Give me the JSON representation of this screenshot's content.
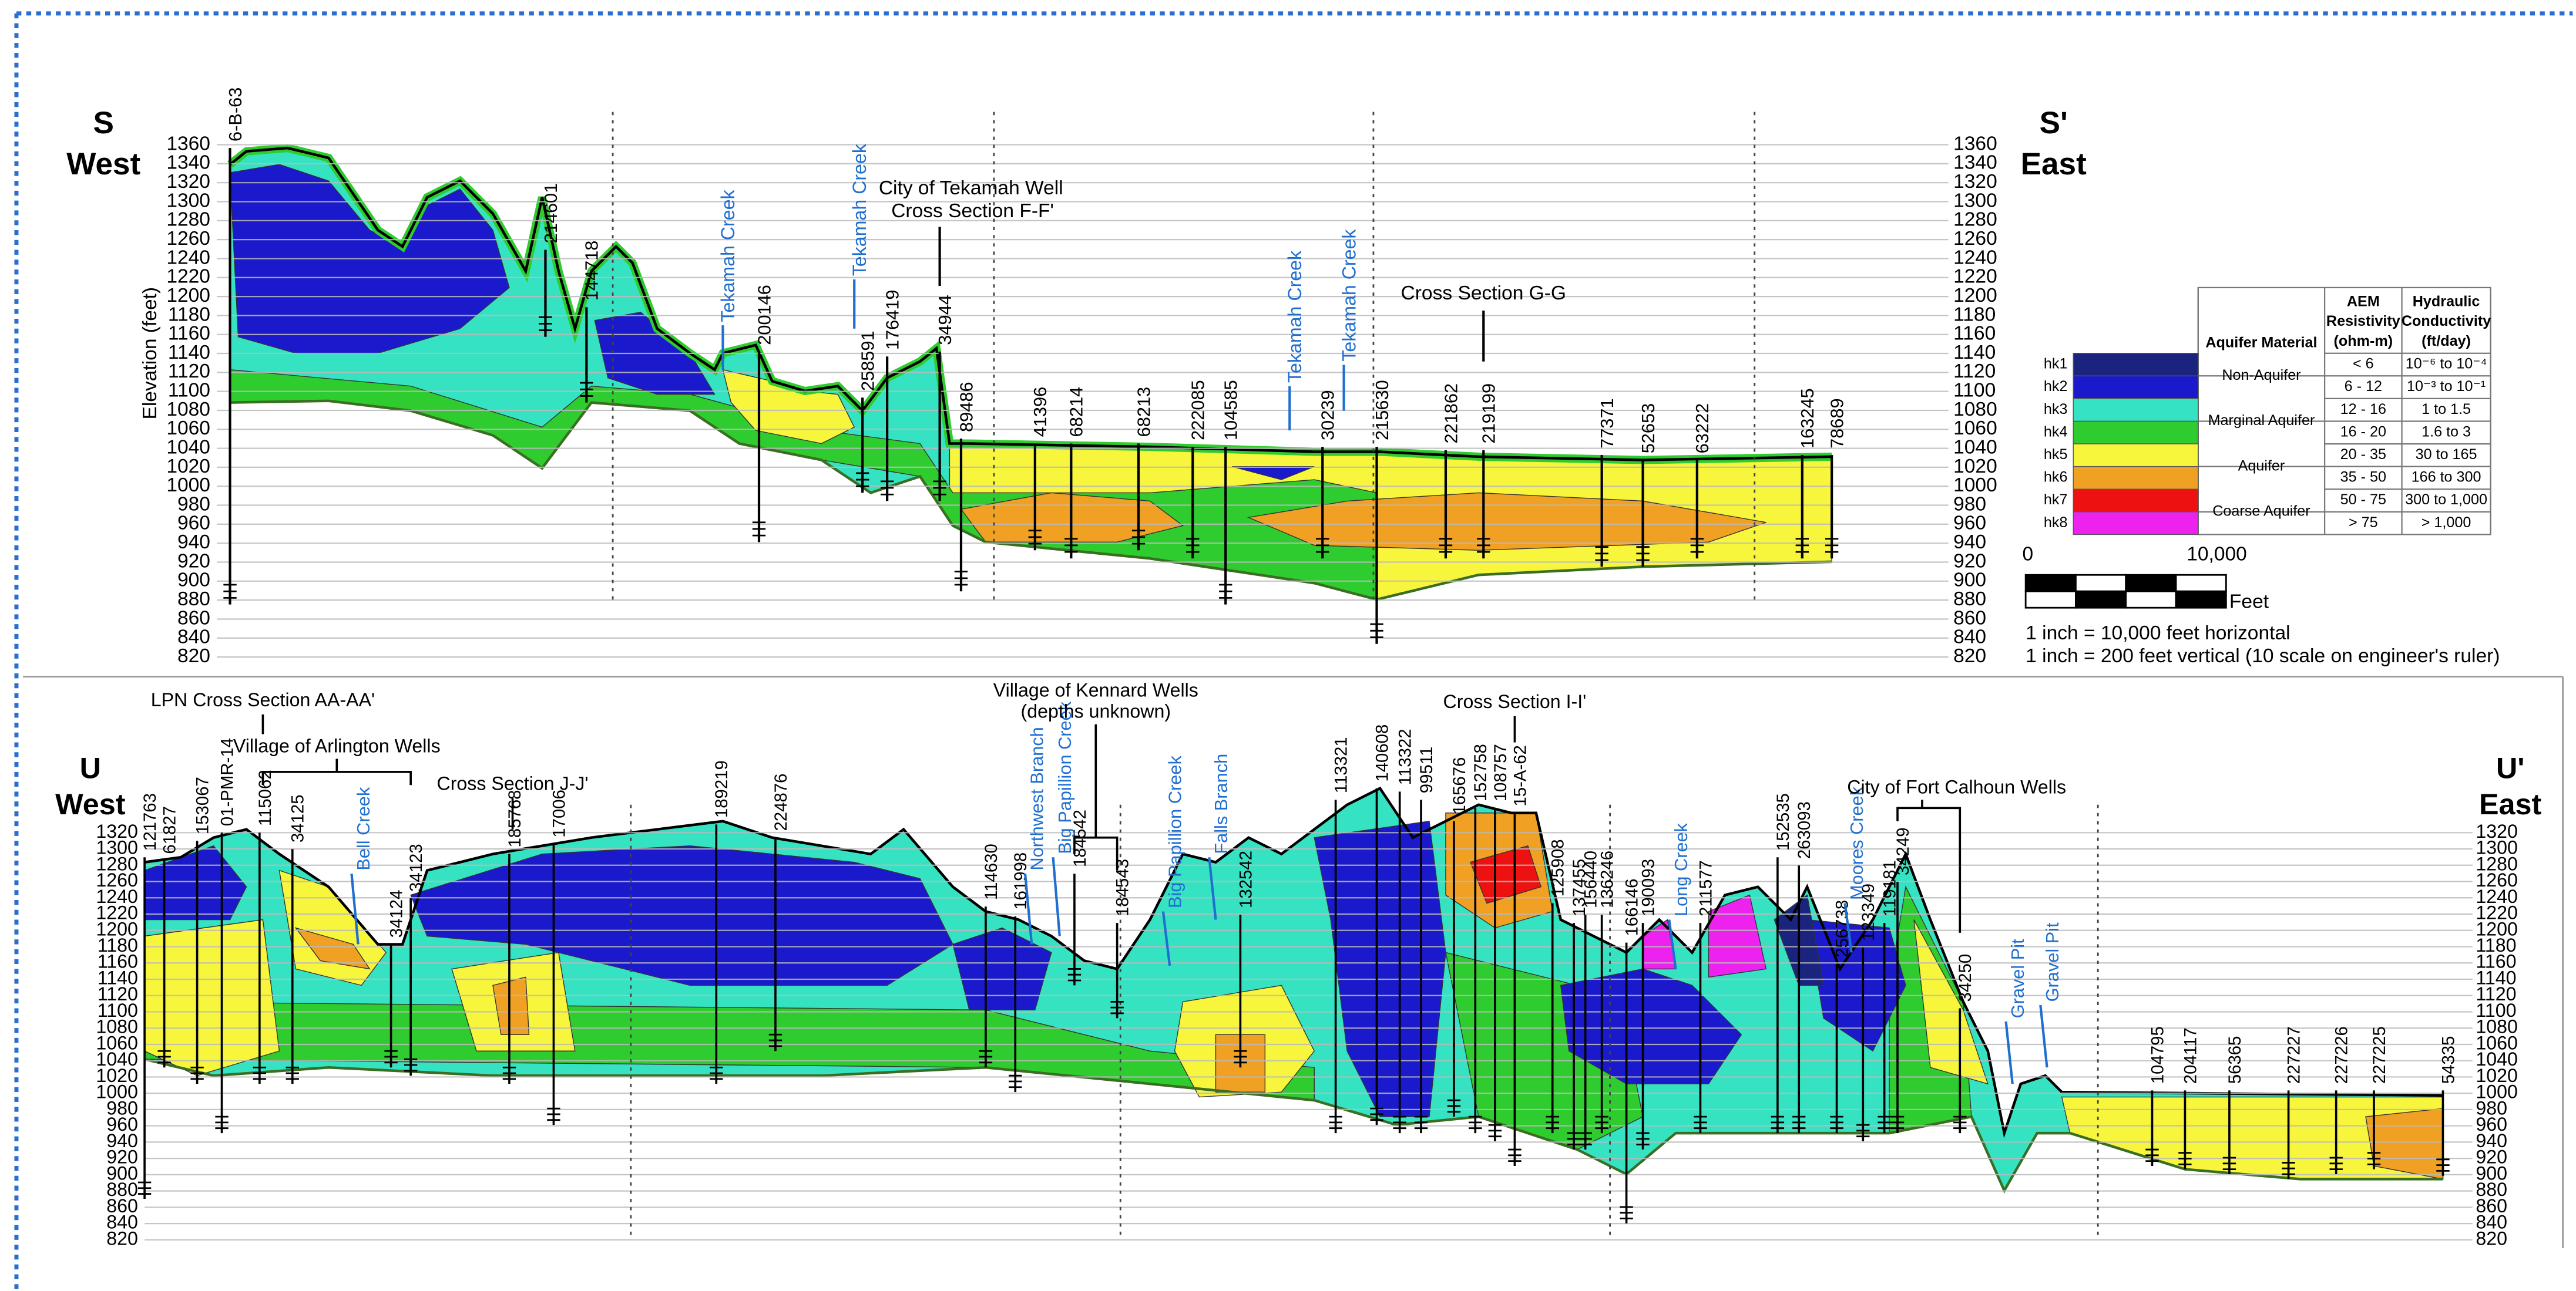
{
  "top_panel": {
    "left_label": "S",
    "left_direction": "West",
    "right_label": "S'",
    "right_direction": "East",
    "y_axis_label": "Elevation (feet)",
    "yticks": [
      1360,
      1340,
      1320,
      1300,
      1280,
      1260,
      1240,
      1220,
      1200,
      1180,
      1160,
      1140,
      1120,
      1100,
      1080,
      1060,
      1040,
      1020,
      1000,
      980,
      960,
      940,
      920,
      900,
      880,
      860,
      840,
      820
    ],
    "wells": [
      "6-B-63",
      "214601",
      "144718",
      "200146",
      "258591",
      "176419",
      "34944",
      "89486",
      "41396",
      "68214",
      "68213",
      "222085",
      "104585",
      "30239",
      "215630",
      "221862",
      "219199",
      "77371",
      "52653",
      "63222",
      "163245",
      "78689"
    ],
    "creeks": [
      "Tekamah Creek",
      "Tekamah Creek",
      "Tekamah Creek",
      "Tekamah Creek"
    ],
    "annotations": [
      "City of Tekamah Well",
      "Cross Section F-F'",
      "Cross Section G-G"
    ]
  },
  "bottom_panel": {
    "left_label": "U",
    "left_direction": "West",
    "right_label": "U'",
    "right_direction": "East",
    "yticks": [
      1320,
      1300,
      1280,
      1260,
      1240,
      1220,
      1200,
      1180,
      1160,
      1140,
      1120,
      1100,
      1080,
      1060,
      1040,
      1020,
      1000,
      980,
      960,
      940,
      920,
      900,
      880,
      860,
      840,
      820
    ],
    "wells": [
      "121763",
      "61827",
      "153067",
      "01-PMR-14",
      "115062",
      "34125",
      "34124",
      "34123",
      "185768",
      "17006",
      "189219",
      "224876",
      "114630",
      "161998",
      "184542",
      "184543",
      "132542",
      "113321",
      "140608",
      "113322",
      "99511",
      "165676",
      "152758",
      "108757",
      "15-A-62",
      "125908",
      "137455",
      "156440",
      "136246",
      "166146",
      "190093",
      "211577",
      "152535",
      "263093",
      "256738",
      "123349",
      "119181",
      "34249",
      "34250",
      "104795",
      "204117",
      "56365",
      "227227",
      "227226",
      "227225",
      "54335"
    ],
    "creeks": [
      "Bell Creek",
      "Northwest Branch",
      "Big Papillion Creek",
      "Big Papillion Creek",
      "Falls Branch",
      "Long Creek",
      "Moores Creek",
      "Gravel Pit",
      "Gravel Pit"
    ],
    "annotations": [
      "LPN Cross Section AA-AA'",
      "Village of Arlington Wells",
      "Cross Section J-J'",
      "Village of Kennard Wells",
      "(depths unknown)",
      "Cross Section I-I'",
      "City of Fort Calhoun Wells"
    ]
  },
  "legend": {
    "headers": [
      [
        "Aquifer Material"
      ],
      [
        "AEM",
        "Resistivity",
        "(ohm-m)"
      ],
      [
        "Hydraulic",
        "Conductivity",
        "(ft/day)"
      ]
    ],
    "groups": [
      "Non-Aquifer",
      "Marginal Aquifer",
      "Aquifer",
      "Coarse Aquifer"
    ],
    "rows": [
      {
        "code": "hk1",
        "color": "#1a237e",
        "resistivity": "< 6",
        "conductivity": "10⁻⁶ to 10⁻⁴"
      },
      {
        "code": "hk2",
        "color": "#1a1acc",
        "resistivity": "6 - 12",
        "conductivity": "10⁻³ to 10⁻¹"
      },
      {
        "code": "hk3",
        "color": "#35e3c3",
        "resistivity": "12 - 16",
        "conductivity": "1 to 1.5"
      },
      {
        "code": "hk4",
        "color": "#2ecc2e",
        "resistivity": "16 - 20",
        "conductivity": "1.6 to 3"
      },
      {
        "code": "hk5",
        "color": "#f7f53c",
        "resistivity": "20 - 35",
        "conductivity": "30 to 165"
      },
      {
        "code": "hk6",
        "color": "#f0a022",
        "resistivity": "35 - 50",
        "conductivity": "166 to 300"
      },
      {
        "code": "hk7",
        "color": "#ee1111",
        "resistivity": "50 - 75",
        "conductivity": "300 to 1,000"
      },
      {
        "code": "hk8",
        "color": "#ee22ee",
        "resistivity": "> 75",
        "conductivity": "> 1,000"
      }
    ]
  },
  "scale_bar": {
    "labels": [
      "0",
      "10,000"
    ],
    "unit": "Feet",
    "notes": [
      "1 inch = 10,000 feet horizontal",
      "1 inch = 200 feet vertical (10 scale on engineer's ruler)"
    ]
  }
}
